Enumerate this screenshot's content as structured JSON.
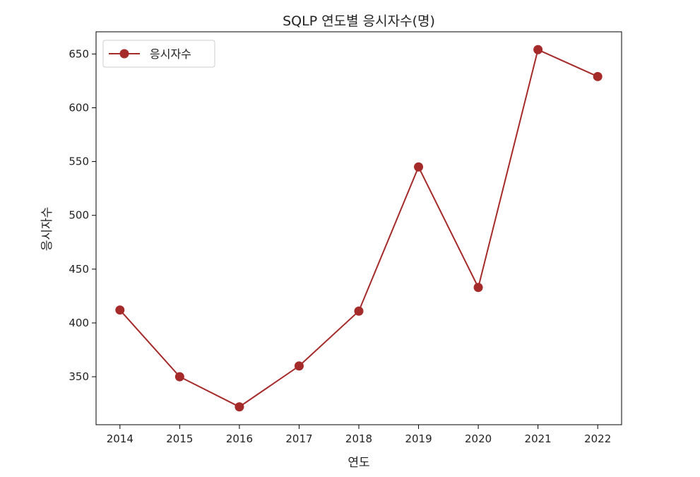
{
  "chart_data": {
    "type": "line",
    "title": "SQLP 연도별 응시자수(명)",
    "xlabel": "연도",
    "ylabel": "응시자수",
    "x": [
      2014,
      2015,
      2016,
      2017,
      2018,
      2019,
      2020,
      2021,
      2022
    ],
    "series": [
      {
        "name": "응시자수",
        "values": [
          412,
          350,
          322,
          360,
          411,
          545,
          433,
          654,
          629
        ],
        "color": "#a52a2a",
        "marker": "circle"
      }
    ],
    "xlim": [
      2013.6,
      2022.4
    ],
    "ylim": [
      305.4,
      670.6
    ],
    "yticks": [
      350,
      400,
      450,
      500,
      550,
      600,
      650
    ],
    "xticks": [
      2014,
      2015,
      2016,
      2017,
      2018,
      2019,
      2020,
      2021,
      2022
    ],
    "grid": false,
    "legend_position": "upper-left"
  }
}
